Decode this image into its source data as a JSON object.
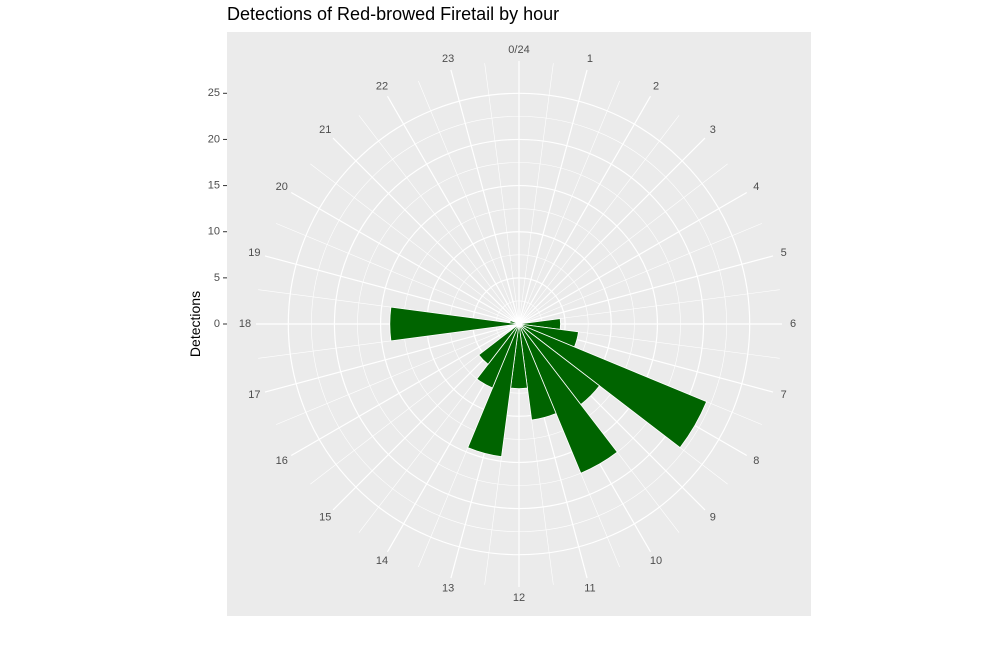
{
  "chart_data": {
    "type": "bar",
    "coordinate_system": "polar",
    "title": "Detections of Red-browed Firetail by hour",
    "ylabel": "Detections",
    "xlabel": "",
    "categories": [
      "0/24",
      "1",
      "2",
      "3",
      "4",
      "5",
      "6",
      "7",
      "8",
      "9",
      "10",
      "11",
      "12",
      "13",
      "14",
      "15",
      "16",
      "17",
      "18",
      "19",
      "20",
      "21",
      "22",
      "23"
    ],
    "values": [
      0,
      0,
      0,
      0,
      0,
      0,
      4.5,
      6.5,
      22,
      11,
      17.5,
      10.5,
      7,
      14.5,
      7.5,
      5.5,
      0,
      0,
      14,
      1,
      0,
      0,
      0,
      0
    ],
    "y_ticks": [
      0,
      5,
      10,
      15,
      20,
      25
    ],
    "y_tick_labels": [
      "0",
      "5",
      "10",
      "15",
      "20",
      "25"
    ],
    "ylim": [
      0,
      28.5
    ],
    "bar_color": "#006400",
    "panel_color": "#ebebeb",
    "grid_color": "#ffffff",
    "grid": true,
    "legend": "none"
  }
}
